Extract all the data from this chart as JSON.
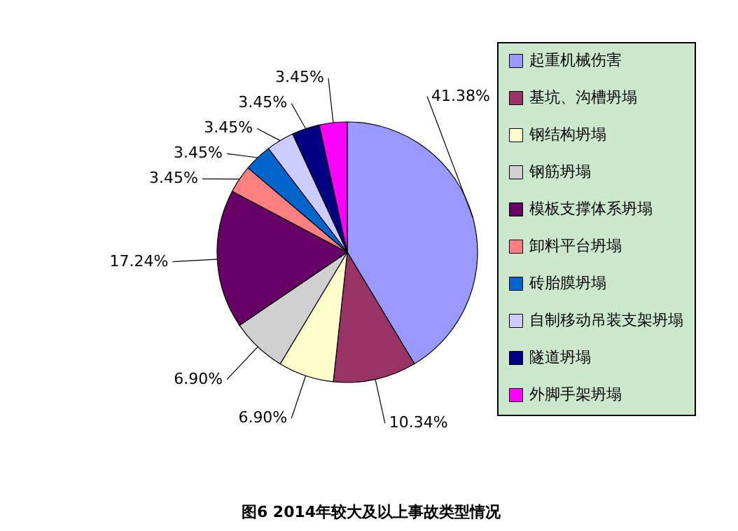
{
  "chart_data": {
    "type": "pie",
    "title": "图6  2014年较大及以上事故类型情况",
    "categories": [
      "起重机械伤害",
      "基坑、沟槽坍塌",
      "钢结构坍塌",
      "钢筋坍塌",
      "模板支撑体系坍塌",
      "卸料平台坍塌",
      "砖胎膜坍塌",
      "自制移动吊装支架坍塌",
      "隧道坍塌",
      "外脚手架坍塌"
    ],
    "values": [
      41.38,
      10.34,
      6.9,
      6.9,
      17.24,
      3.45,
      3.45,
      3.45,
      3.45,
      3.45
    ],
    "value_labels": [
      "41.38%",
      "10.34%",
      "6.90%",
      "6.90%",
      "17.24%",
      "3.45%",
      "3.45%",
      "3.45%",
      "3.45%",
      "3.45%"
    ],
    "colors": [
      "#9999ff",
      "#993366",
      "#ffffcc",
      "#d0d0d0",
      "#660066",
      "#ff8080",
      "#0066cc",
      "#ccccff",
      "#000080",
      "#ff00ff"
    ],
    "legend": "right"
  }
}
